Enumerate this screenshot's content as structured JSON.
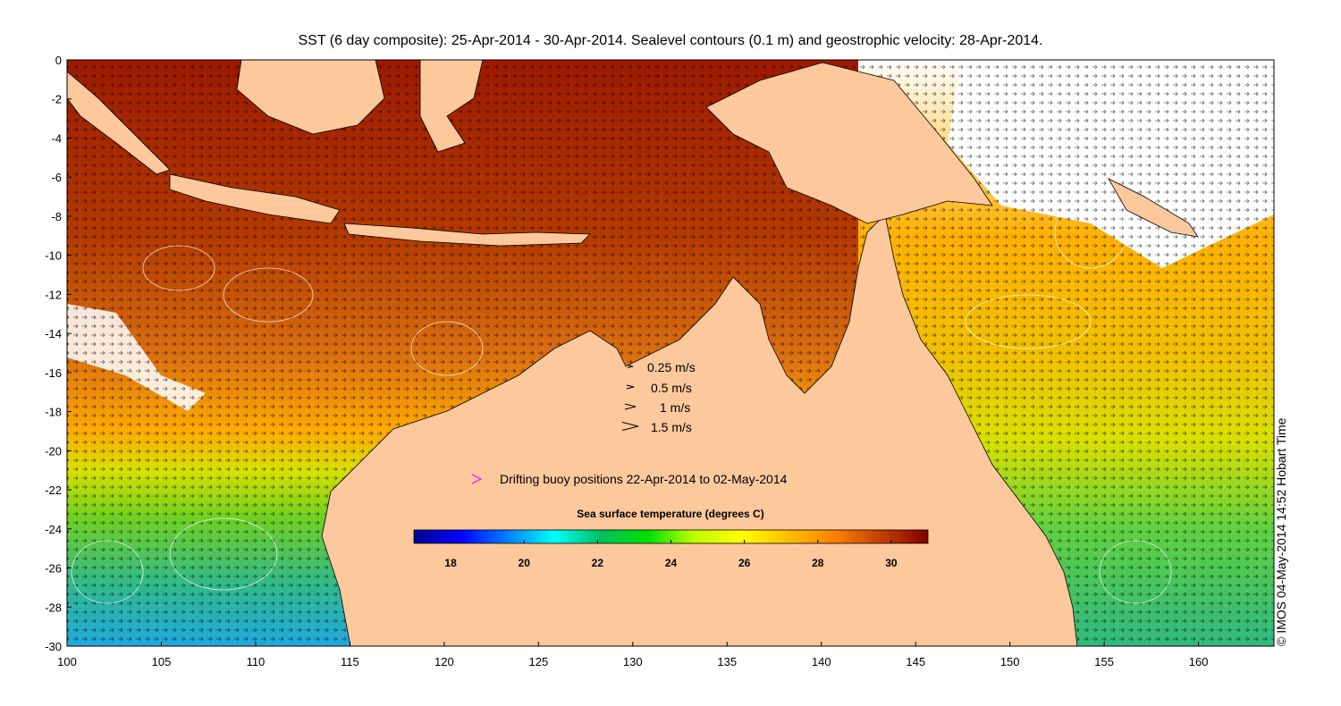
{
  "title": "SST (6 day composite): 25-Apr-2014 - 30-Apr-2014. Sealevel contours (0.1 m) and geostrophic velocity: 28-Apr-2014.",
  "stamp": "© IMOS 04-May-2014 14:52 Hobart Time",
  "map": {
    "lon_range": [
      100,
      164
    ],
    "lat_range": [
      -30,
      0
    ],
    "x_ticks": [
      "100",
      "105",
      "110",
      "115",
      "120",
      "125",
      "130",
      "135",
      "140",
      "145",
      "150",
      "155",
      "160"
    ],
    "y_ticks": [
      "0",
      "-2",
      "-4",
      "-6",
      "-8",
      "-10",
      "-12",
      "-14",
      "-16",
      "-18",
      "-20",
      "-22",
      "-24",
      "-26",
      "-28",
      "-30"
    ],
    "land_color": "#fcc89c"
  },
  "velocity_legend": [
    {
      "label": "0.25 m/s"
    },
    {
      "label": "0.5 m/s"
    },
    {
      "label": "1 m/s"
    },
    {
      "label": "1.5 m/s"
    }
  ],
  "buoy_legend": {
    "label": "Drifting buoy positions 22-Apr-2014 to 02-May-2014",
    "color": "#ff00ff"
  },
  "colorbar": {
    "title": "Sea surface temperature (degrees C)",
    "range": [
      17,
      31
    ],
    "ticks": [
      "18",
      "20",
      "22",
      "24",
      "26",
      "28",
      "30"
    ],
    "stops": [
      "#00008f",
      "#0000ff",
      "#0080ff",
      "#00ffff",
      "#00c060",
      "#00e000",
      "#c0ff00",
      "#ffff00",
      "#ffc000",
      "#ff8000",
      "#c04000",
      "#800000"
    ]
  }
}
